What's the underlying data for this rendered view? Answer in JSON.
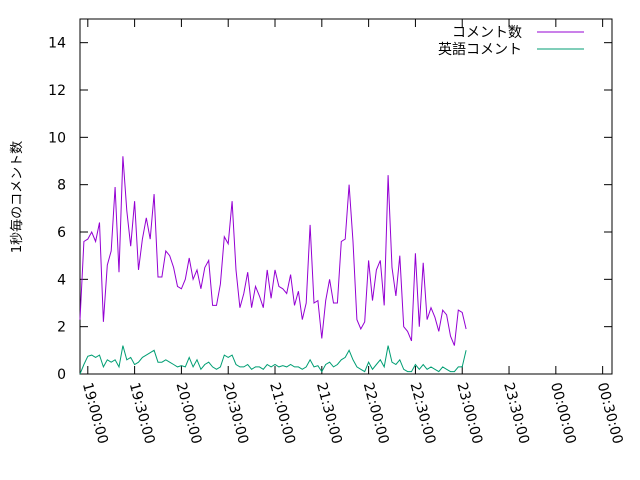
{
  "chart_data": {
    "type": "line",
    "title": "",
    "xlabel": "",
    "ylabel": "1秒毎のコメント数",
    "ylim": [
      0,
      15
    ],
    "xlim": [
      "18:55:00",
      "00:36:00"
    ],
    "y_ticks": [
      "0",
      "2",
      "4",
      "6",
      "8",
      "10",
      "12",
      "14"
    ],
    "x_ticks": [
      "19:00:00",
      "19:30:00",
      "20:00:00",
      "20:30:00",
      "21:00:00",
      "21:30:00",
      "22:00:00",
      "22:30:00",
      "23:00:00",
      "23:30:00",
      "00:00:00",
      "00:30:00"
    ],
    "grid": false,
    "legend_position": "top-right",
    "x_interval_minutes": 2.5,
    "series": [
      {
        "name": "コメント数",
        "color": "#9400d3",
        "x_start": "18:55:00",
        "values": [
          2.3,
          5.6,
          5.7,
          6.0,
          5.6,
          6.4,
          2.2,
          4.6,
          5.2,
          7.9,
          4.3,
          9.2,
          6.9,
          5.4,
          7.3,
          4.4,
          5.7,
          6.6,
          5.7,
          7.6,
          4.1,
          4.1,
          5.2,
          5.0,
          4.5,
          3.7,
          3.6,
          4.0,
          4.9,
          4.0,
          4.4,
          3.6,
          4.5,
          4.8,
          2.9,
          2.9,
          3.8,
          5.8,
          5.5,
          7.3,
          4.4,
          2.8,
          3.4,
          4.3,
          2.8,
          3.7,
          3.3,
          2.8,
          4.4,
          3.2,
          4.4,
          3.7,
          3.6,
          3.4,
          4.2,
          2.9,
          3.5,
          2.3,
          3.0,
          6.3,
          3.0,
          3.1,
          1.5,
          3.1,
          4.0,
          3.0,
          3.0,
          5.6,
          5.7,
          8.0,
          5.6,
          2.3,
          1.9,
          2.2,
          4.8,
          3.1,
          4.4,
          4.8,
          2.9,
          8.4,
          4.5,
          3.3,
          5.0,
          2.0,
          1.8,
          1.4,
          5.1,
          2.0,
          4.7,
          2.3,
          2.8,
          2.4,
          1.8,
          2.7,
          2.5,
          1.6,
          1.2,
          2.7,
          2.6,
          1.9
        ]
      },
      {
        "name": "英語コメント",
        "color": "#009e73",
        "x_start": "18:55:00",
        "values": [
          0.0,
          0.4,
          0.75,
          0.8,
          0.7,
          0.8,
          0.3,
          0.6,
          0.5,
          0.6,
          0.3,
          1.2,
          0.6,
          0.7,
          0.4,
          0.5,
          0.7,
          0.8,
          0.9,
          1.0,
          0.5,
          0.5,
          0.6,
          0.5,
          0.4,
          0.3,
          0.35,
          0.3,
          0.7,
          0.3,
          0.6,
          0.2,
          0.4,
          0.5,
          0.3,
          0.2,
          0.3,
          0.8,
          0.7,
          0.8,
          0.4,
          0.3,
          0.3,
          0.4,
          0.2,
          0.3,
          0.3,
          0.2,
          0.4,
          0.3,
          0.4,
          0.3,
          0.35,
          0.3,
          0.4,
          0.3,
          0.3,
          0.2,
          0.3,
          0.6,
          0.3,
          0.35,
          0.1,
          0.4,
          0.5,
          0.3,
          0.4,
          0.6,
          0.7,
          1.0,
          0.6,
          0.3,
          0.2,
          0.1,
          0.5,
          0.2,
          0.4,
          0.6,
          0.3,
          1.2,
          0.5,
          0.4,
          0.6,
          0.2,
          0.1,
          0.1,
          0.4,
          0.2,
          0.4,
          0.2,
          0.3,
          0.2,
          0.1,
          0.3,
          0.2,
          0.1,
          0.1,
          0.3,
          0.3,
          1.0
        ]
      }
    ]
  }
}
